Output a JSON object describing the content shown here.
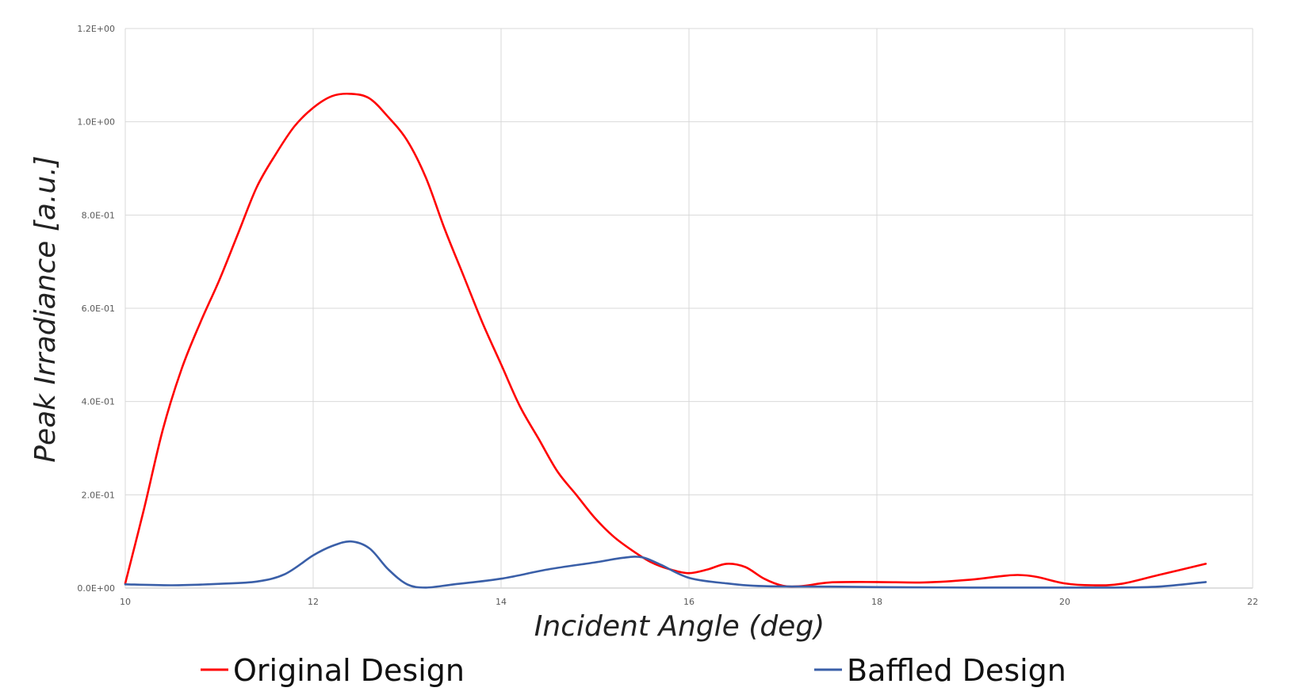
{
  "chart_data": {
    "type": "line",
    "title": "",
    "xlabel": "Incident Angle (deg)",
    "ylabel": "Peak Irradiance [a.u.]",
    "xlim": [
      10,
      22
    ],
    "ylim": [
      0,
      1.2
    ],
    "x_ticks": [
      10,
      12,
      14,
      16,
      18,
      20,
      22
    ],
    "x_tick_labels": [
      "10",
      "12",
      "14",
      "16",
      "18",
      "20",
      "22"
    ],
    "y_ticks": [
      0,
      0.2,
      0.4,
      0.6,
      0.8,
      1.0,
      1.2
    ],
    "y_tick_labels": [
      "0.0E+00",
      "2.0E-01",
      "4.0E-01",
      "6.0E-01",
      "8.0E-01",
      "1.0E+00",
      "1.2E+00"
    ],
    "grid": true,
    "legend_position": "bottom",
    "series": [
      {
        "name": "Original Design",
        "color": "#ff0000",
        "points": [
          [
            10.0,
            0.01
          ],
          [
            10.2,
            0.17
          ],
          [
            10.4,
            0.34
          ],
          [
            10.6,
            0.47
          ],
          [
            10.8,
            0.57
          ],
          [
            11.0,
            0.66
          ],
          [
            11.2,
            0.76
          ],
          [
            11.4,
            0.86
          ],
          [
            11.6,
            0.93
          ],
          [
            11.8,
            0.99
          ],
          [
            12.0,
            1.03
          ],
          [
            12.2,
            1.055
          ],
          [
            12.4,
            1.06
          ],
          [
            12.6,
            1.05
          ],
          [
            12.8,
            1.01
          ],
          [
            13.0,
            0.96
          ],
          [
            13.2,
            0.88
          ],
          [
            13.4,
            0.77
          ],
          [
            13.6,
            0.67
          ],
          [
            13.8,
            0.57
          ],
          [
            14.0,
            0.48
          ],
          [
            14.2,
            0.39
          ],
          [
            14.4,
            0.32
          ],
          [
            14.6,
            0.25
          ],
          [
            14.8,
            0.2
          ],
          [
            15.0,
            0.15
          ],
          [
            15.2,
            0.11
          ],
          [
            15.4,
            0.08
          ],
          [
            15.6,
            0.055
          ],
          [
            15.8,
            0.04
          ],
          [
            16.0,
            0.032
          ],
          [
            16.2,
            0.04
          ],
          [
            16.4,
            0.052
          ],
          [
            16.6,
            0.045
          ],
          [
            16.8,
            0.02
          ],
          [
            17.0,
            0.005
          ],
          [
            17.2,
            0.004
          ],
          [
            17.5,
            0.012
          ],
          [
            18.0,
            0.013
          ],
          [
            18.5,
            0.012
          ],
          [
            19.0,
            0.018
          ],
          [
            19.3,
            0.025
          ],
          [
            19.5,
            0.028
          ],
          [
            19.7,
            0.024
          ],
          [
            20.0,
            0.01
          ],
          [
            20.3,
            0.006
          ],
          [
            20.6,
            0.009
          ],
          [
            21.0,
            0.028
          ],
          [
            21.5,
            0.052
          ]
        ]
      },
      {
        "name": "Baffled Design",
        "color": "#3a5fa8",
        "points": [
          [
            10.0,
            0.008
          ],
          [
            10.5,
            0.006
          ],
          [
            11.0,
            0.009
          ],
          [
            11.4,
            0.014
          ],
          [
            11.7,
            0.03
          ],
          [
            12.0,
            0.07
          ],
          [
            12.2,
            0.09
          ],
          [
            12.4,
            0.1
          ],
          [
            12.6,
            0.085
          ],
          [
            12.8,
            0.04
          ],
          [
            13.0,
            0.008
          ],
          [
            13.2,
            0.001
          ],
          [
            13.5,
            0.008
          ],
          [
            14.0,
            0.02
          ],
          [
            14.5,
            0.04
          ],
          [
            15.0,
            0.055
          ],
          [
            15.3,
            0.065
          ],
          [
            15.5,
            0.066
          ],
          [
            15.7,
            0.05
          ],
          [
            16.0,
            0.022
          ],
          [
            16.4,
            0.01
          ],
          [
            16.8,
            0.004
          ],
          [
            17.5,
            0.003
          ],
          [
            18.0,
            0.002
          ],
          [
            19.0,
            0.001
          ],
          [
            20.0,
            0.001
          ],
          [
            20.5,
            0.001
          ],
          [
            21.0,
            0.003
          ],
          [
            21.5,
            0.013
          ]
        ]
      }
    ]
  }
}
